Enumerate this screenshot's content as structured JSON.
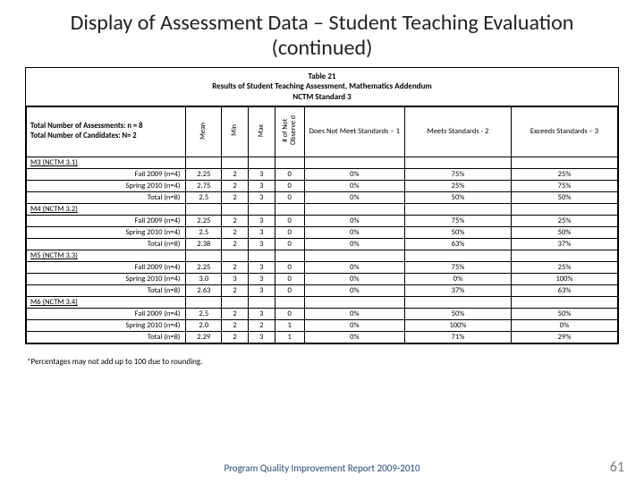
{
  "title": "Display of Assessment Data – Student Teaching Evaluation (continued)",
  "caption_l1": "Table 21",
  "caption_l2": "Results of Student Teaching Assessment, Mathematics Addendum",
  "caption_l3": "NCTM Standard 3",
  "meta_l1": "Total Number of Assessments: n = 8",
  "meta_l2": "Total Number of Candidates: N= 2",
  "col_headers": {
    "mean": "Mean",
    "min": "Min",
    "max": "Max",
    "not_obs": "# of Not Observe d",
    "dnm": "Does Not Meet Standards – 1",
    "meets": "Meets Standards - 2",
    "exceeds": "Exceeds Standards – 3"
  },
  "sections": [
    {
      "label": "M3 (NCTM 3.1)",
      "rows": [
        {
          "label": "Fall 2009 (n=4)",
          "mean": "2.25",
          "min": "2",
          "max": "3",
          "nobs": "0",
          "dnm": "0%",
          "meets": "75%",
          "exc": "25%"
        },
        {
          "label": "Spring 2010 (n=4)",
          "mean": "2.75",
          "min": "2",
          "max": "3",
          "nobs": "0",
          "dnm": "0%",
          "meets": "25%",
          "exc": "75%"
        },
        {
          "label": "Total (n=8)",
          "mean": "2.5",
          "min": "2",
          "max": "3",
          "nobs": "0",
          "dnm": "0%",
          "meets": "50%",
          "exc": "50%"
        }
      ]
    },
    {
      "label": "M4 (NCTM 3.2)",
      "rows": [
        {
          "label": "Fall 2009 (n=4)",
          "mean": "2.25",
          "min": "2",
          "max": "3",
          "nobs": "0",
          "dnm": "0%",
          "meets": "75%",
          "exc": "25%"
        },
        {
          "label": "Spring 2010 (n=4)",
          "mean": "2.5",
          "min": "2",
          "max": "3",
          "nobs": "0",
          "dnm": "0%",
          "meets": "50%",
          "exc": "50%"
        },
        {
          "label": "Total (n=8)",
          "mean": "2.38",
          "min": "2",
          "max": "3",
          "nobs": "0",
          "dnm": "0%",
          "meets": "63%",
          "exc": "37%"
        }
      ]
    },
    {
      "label": "M5 (NCTM 3.3)",
      "rows": [
        {
          "label": "Fall 2009 (n=4)",
          "mean": "2.25",
          "min": "2",
          "max": "3",
          "nobs": "0",
          "dnm": "0%",
          "meets": "75%",
          "exc": "25%"
        },
        {
          "label": "Spring 2010 (n=4)",
          "mean": "3.0",
          "min": "3",
          "max": "3",
          "nobs": "0",
          "dnm": "0%",
          "meets": "0%",
          "exc": "100%"
        },
        {
          "label": "Total (n=8)",
          "mean": "2.63",
          "min": "2",
          "max": "3",
          "nobs": "0",
          "dnm": "0%",
          "meets": "37%",
          "exc": "63%"
        }
      ]
    },
    {
      "label": "M6 (NCTM 3.4)",
      "rows": [
        {
          "label": "Fall 2009 (n=4)",
          "mean": "2.5",
          "min": "2",
          "max": "3",
          "nobs": "0",
          "dnm": "0%",
          "meets": "50%",
          "exc": "50%"
        },
        {
          "label": "Spring 2010 (n=4)",
          "mean": "2.0",
          "min": "2",
          "max": "2",
          "nobs": "1",
          "dnm": "0%",
          "meets": "100%",
          "exc": "0%"
        },
        {
          "label": "Total (n=8)",
          "mean": "2.29",
          "min": "2",
          "max": "3",
          "nobs": "1",
          "dnm": "0%",
          "meets": "71%",
          "exc": "29%"
        }
      ]
    }
  ],
  "footnote": "*Percentages may not add up to 100 due to rounding.",
  "footer": "Program Quality Improvement Report 2009-2010",
  "page": "61",
  "colors": {
    "accent": "#254a7a",
    "pagenum": "#7a7a7a"
  },
  "col_widths": {
    "label": "27%",
    "mean": "6%",
    "min": "4.5%",
    "max": "4.5%",
    "nobs": "5%",
    "dnm": "17%",
    "meets": "18%",
    "exc": "18%"
  }
}
